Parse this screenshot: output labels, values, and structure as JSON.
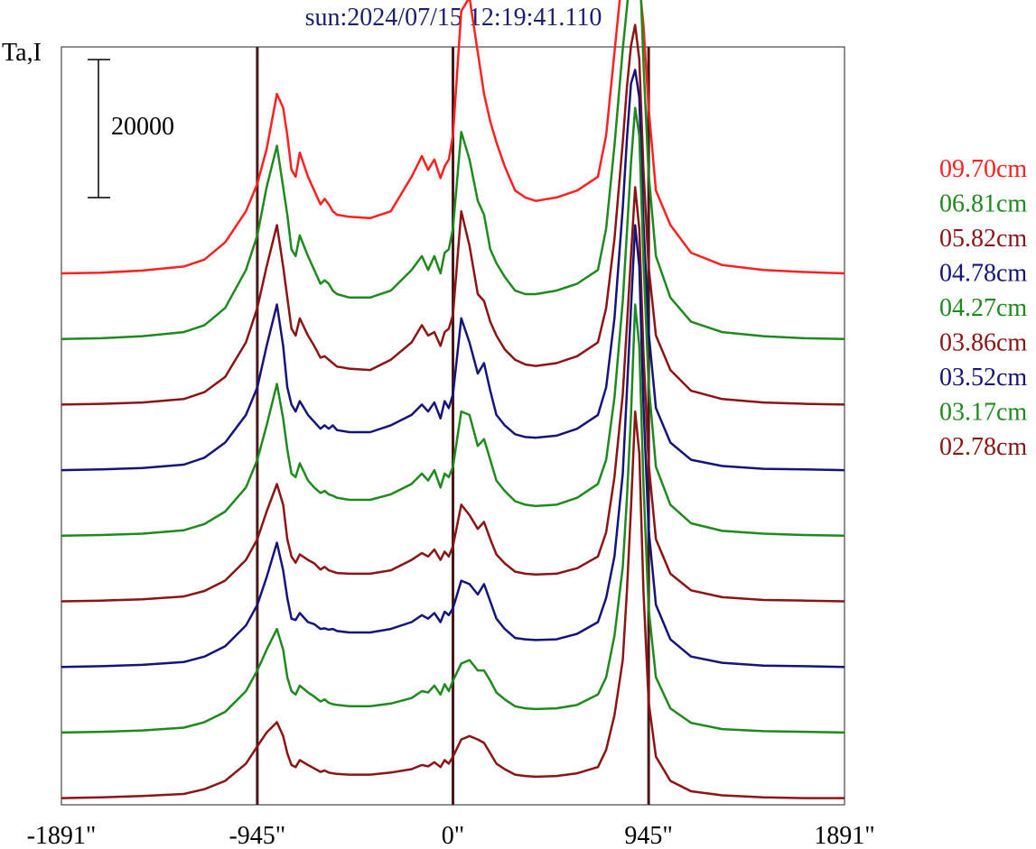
{
  "chart_data": {
    "type": "line",
    "title": "sun:2024/07/15 12:19:41.110",
    "ylabel": "Ta,I",
    "xlabel": "",
    "x_ticks": [
      "-1891\"",
      "-945\"",
      "0\"",
      "945\"",
      "1891\""
    ],
    "xlim": [
      -1891,
      1891
    ],
    "vertical_lines": [
      -945,
      0,
      945
    ],
    "scale_bar": {
      "value": 20000,
      "label": "20000"
    },
    "grid": false,
    "legend_position": "right",
    "x": [
      -1891,
      -1700,
      -1500,
      -1300,
      -1200,
      -1100,
      -1000,
      -945,
      -900,
      -850,
      -820,
      -800,
      -780,
      -760,
      -740,
      -700,
      -670,
      -640,
      -620,
      -600,
      -580,
      -560,
      -500,
      -400,
      -300,
      -200,
      -150,
      -120,
      -90,
      -60,
      -40,
      -20,
      0,
      40,
      80,
      120,
      150,
      180,
      210,
      250,
      300,
      350,
      400,
      500,
      600,
      700,
      740,
      780,
      820,
      840,
      860,
      880,
      900,
      920,
      945,
      980,
      1050,
      1150,
      1300,
      1500,
      1700,
      1891
    ],
    "series": [
      {
        "name": "09.70cm",
        "color": "#ff2020",
        "values": [
          0,
          100,
          400,
          1000,
          2000,
          4500,
          9000,
          13000,
          18000,
          26000,
          24000,
          20000,
          15000,
          14000,
          17500,
          14000,
          12000,
          10000,
          10800,
          10000,
          9000,
          8500,
          8200,
          8000,
          9000,
          14000,
          17000,
          15000,
          16500,
          13800,
          15500,
          16500,
          20000,
          38000,
          40000,
          32000,
          26000,
          22000,
          19000,
          15500,
          12000,
          11000,
          10500,
          11000,
          12000,
          14000,
          20000,
          32000,
          44000,
          48000,
          49000,
          47000,
          42000,
          36000,
          24000,
          12000,
          7000,
          3000,
          1200,
          500,
          200,
          0
        ]
      },
      {
        "name": "06.81cm",
        "color": "#1e8a1e",
        "values": [
          0,
          100,
          400,
          1000,
          2000,
          4500,
          10000,
          15000,
          22000,
          28000,
          22000,
          18000,
          13000,
          12000,
          15000,
          12000,
          10000,
          8000,
          8500,
          8000,
          7000,
          6500,
          6000,
          6000,
          7000,
          10000,
          12000,
          10000,
          12000,
          9500,
          12500,
          13000,
          16000,
          30000,
          26000,
          20000,
          18000,
          13000,
          11000,
          9000,
          7000,
          6500,
          6500,
          7000,
          8000,
          10000,
          16000,
          28000,
          42000,
          48000,
          54000,
          58000,
          56000,
          40000,
          24000,
          12000,
          6000,
          2500,
          1000,
          400,
          100,
          0
        ]
      },
      {
        "name": "05.82cm",
        "color": "#8b1414",
        "values": [
          0,
          100,
          300,
          800,
          1800,
          4000,
          9000,
          14000,
          20000,
          26000,
          20000,
          15500,
          11000,
          10000,
          12500,
          10000,
          8500,
          6800,
          7000,
          6500,
          6000,
          5500,
          5200,
          5000,
          6500,
          9000,
          11500,
          10000,
          10500,
          8500,
          10500,
          11000,
          13000,
          28000,
          23000,
          16000,
          15000,
          12000,
          10000,
          8000,
          6500,
          5800,
          5600,
          6000,
          7000,
          9000,
          14000,
          24000,
          38000,
          46000,
          52000,
          55000,
          50000,
          34000,
          20000,
          10000,
          5000,
          2000,
          800,
          300,
          100,
          0
        ]
      },
      {
        "name": "04.78cm",
        "color": "#14147a",
        "values": [
          0,
          100,
          300,
          800,
          1800,
          4000,
          8000,
          12000,
          18000,
          24000,
          18000,
          12000,
          9500,
          8500,
          10000,
          8000,
          7000,
          6000,
          6500,
          6000,
          6500,
          5800,
          5500,
          5500,
          6500,
          8000,
          9500,
          8500,
          9800,
          7500,
          10000,
          9000,
          11000,
          22000,
          18500,
          14000,
          15500,
          11500,
          8000,
          6500,
          5200,
          4800,
          4700,
          5000,
          6000,
          8000,
          12000,
          22000,
          38000,
          48000,
          56000,
          58000,
          54000,
          36000,
          20000,
          9000,
          4000,
          1500,
          600,
          200,
          100,
          0
        ]
      },
      {
        "name": "04.27cm",
        "color": "#1e8a1e",
        "values": [
          0,
          100,
          300,
          800,
          1700,
          3500,
          7000,
          11000,
          16000,
          22000,
          17000,
          12500,
          9000,
          8500,
          10500,
          8000,
          7000,
          6200,
          6500,
          6000,
          5800,
          5500,
          5200,
          5200,
          6000,
          7500,
          9000,
          8000,
          9500,
          7000,
          9000,
          8500,
          10000,
          18000,
          17500,
          13000,
          14000,
          11000,
          8000,
          6500,
          5000,
          4500,
          4300,
          4500,
          5500,
          7500,
          11000,
          20000,
          34000,
          44000,
          54000,
          62000,
          58000,
          40000,
          22000,
          10000,
          4500,
          1800,
          700,
          300,
          100,
          0
        ]
      },
      {
        "name": "03.86cm",
        "color": "#8b1414",
        "values": [
          0,
          100,
          300,
          700,
          1500,
          3000,
          6000,
          9000,
          13000,
          17000,
          14000,
          9000,
          6500,
          5600,
          6800,
          6000,
          5500,
          4600,
          5000,
          4500,
          4300,
          4100,
          4000,
          4000,
          4500,
          6000,
          7000,
          6500,
          7500,
          6000,
          7200,
          6500,
          8000,
          14000,
          12500,
          10500,
          11500,
          9000,
          6800,
          5500,
          4300,
          4000,
          3900,
          4000,
          4800,
          6500,
          10000,
          18000,
          30000,
          40000,
          50000,
          60000,
          54000,
          36000,
          20000,
          9000,
          4000,
          1600,
          600,
          200,
          100,
          0
        ]
      },
      {
        "name": "03.52cm",
        "color": "#14147a",
        "values": [
          0,
          100,
          300,
          700,
          1500,
          3000,
          6000,
          9000,
          13000,
          18000,
          14000,
          10000,
          7000,
          6800,
          7800,
          6500,
          6200,
          5500,
          5600,
          5400,
          5500,
          5200,
          5000,
          5000,
          5500,
          6500,
          7500,
          7000,
          7800,
          6500,
          8000,
          7500,
          8500,
          12500,
          12000,
          10500,
          12000,
          9500,
          7000,
          5500,
          4200,
          4000,
          3900,
          4000,
          4800,
          6500,
          10000,
          16000,
          28000,
          40000,
          52000,
          64000,
          58000,
          38000,
          20000,
          9000,
          4000,
          1500,
          600,
          200,
          100,
          0
        ]
      },
      {
        "name": "03.17cm",
        "color": "#1e8a1e",
        "values": [
          0,
          100,
          300,
          700,
          1500,
          3000,
          6000,
          9000,
          12000,
          15000,
          12000,
          8000,
          6000,
          5500,
          6800,
          5800,
          5200,
          4500,
          4800,
          4300,
          4100,
          4000,
          3800,
          3800,
          4200,
          5000,
          6000,
          5800,
          6800,
          5500,
          7000,
          6000,
          7500,
          10000,
          10500,
          9000,
          9000,
          7500,
          5800,
          4800,
          3800,
          3500,
          3400,
          3500,
          4000,
          5500,
          8000,
          14000,
          24000,
          34000,
          46000,
          62000,
          56000,
          36000,
          18000,
          8000,
          3500,
          1400,
          500,
          200,
          100,
          0
        ]
      },
      {
        "name": "02.78cm",
        "color": "#8b1414",
        "values": [
          0,
          100,
          300,
          600,
          1300,
          2500,
          5000,
          7500,
          9500,
          11000,
          9000,
          6500,
          4800,
          4500,
          5500,
          4800,
          4300,
          3800,
          4000,
          3700,
          3600,
          3500,
          3400,
          3400,
          3700,
          4200,
          4800,
          4600,
          5200,
          4500,
          5500,
          5000,
          6000,
          8500,
          9000,
          8500,
          8000,
          6500,
          5000,
          4200,
          3400,
          3200,
          3100,
          3200,
          3600,
          4500,
          7000,
          12000,
          20000,
          30000,
          42000,
          56000,
          50000,
          30000,
          14000,
          6000,
          2500,
          1000,
          400,
          100,
          0,
          0
        ]
      }
    ]
  }
}
